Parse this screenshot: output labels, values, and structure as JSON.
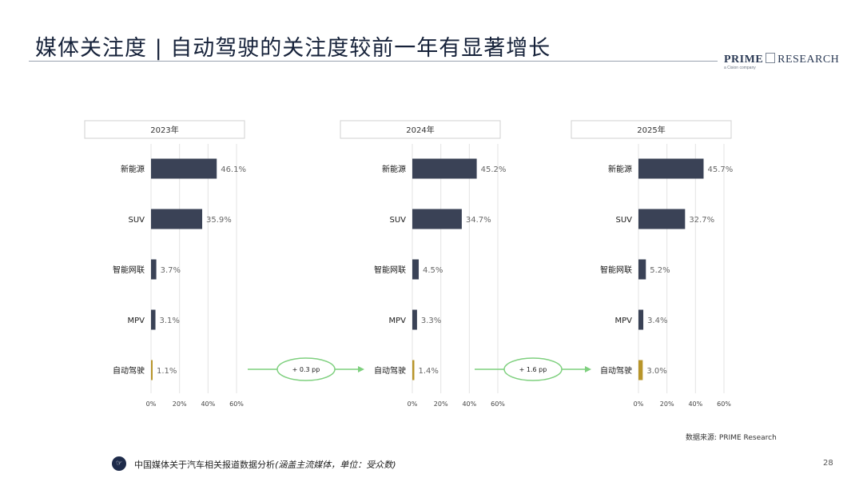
{
  "title": "媒体关注度 | 自动驾驶的关注度较前一年有显著增长",
  "logo": {
    "main": "PRIME",
    "sub": "RESEARCH",
    "tagline": "a Cision company"
  },
  "source": "数据来源: PRIME Research",
  "footer": {
    "text": "中国媒体关于汽车相关报道数据分析",
    "note": "(涵盖主流媒体，单位：受众数)"
  },
  "page_number": "28",
  "colors": {
    "bar": "#3a4256",
    "highlight_bar": "#b8952a",
    "arrow": "#7fd07f",
    "grid": "#e3e3e3"
  },
  "arrows": [
    {
      "label": "+ 0.3 pp"
    },
    {
      "label": "+ 1.6 pp"
    }
  ],
  "chart_data": [
    {
      "type": "bar",
      "orientation": "horizontal",
      "title": "2023年",
      "categories": [
        "新能源",
        "SUV",
        "智能网联",
        "MPV",
        "自动驾驶"
      ],
      "values": [
        46.1,
        35.9,
        3.7,
        3.1,
        1.1
      ],
      "value_labels": [
        "46.1%",
        "35.9%",
        "3.7%",
        "3.1%",
        "1.1%"
      ],
      "x_ticks": [
        "0%",
        "20%",
        "40%",
        "60%"
      ],
      "xlim": [
        0,
        60
      ],
      "grid": true
    },
    {
      "type": "bar",
      "orientation": "horizontal",
      "title": "2024年",
      "categories": [
        "新能源",
        "SUV",
        "智能网联",
        "MPV",
        "自动驾驶"
      ],
      "values": [
        45.2,
        34.7,
        4.5,
        3.3,
        1.4
      ],
      "value_labels": [
        "45.2%",
        "34.7%",
        "4.5%",
        "3.3%",
        "1.4%"
      ],
      "x_ticks": [
        "0%",
        "20%",
        "40%",
        "60%"
      ],
      "xlim": [
        0,
        60
      ],
      "grid": true
    },
    {
      "type": "bar",
      "orientation": "horizontal",
      "title": "2025年",
      "categories": [
        "新能源",
        "SUV",
        "智能网联",
        "MPV",
        "自动驾驶"
      ],
      "values": [
        45.7,
        32.7,
        5.2,
        3.4,
        3.0
      ],
      "value_labels": [
        "45.7%",
        "32.7%",
        "5.2%",
        "3.4%",
        "3.0%"
      ],
      "x_ticks": [
        "0%",
        "20%",
        "40%",
        "60%"
      ],
      "xlim": [
        0,
        60
      ],
      "grid": true
    }
  ]
}
